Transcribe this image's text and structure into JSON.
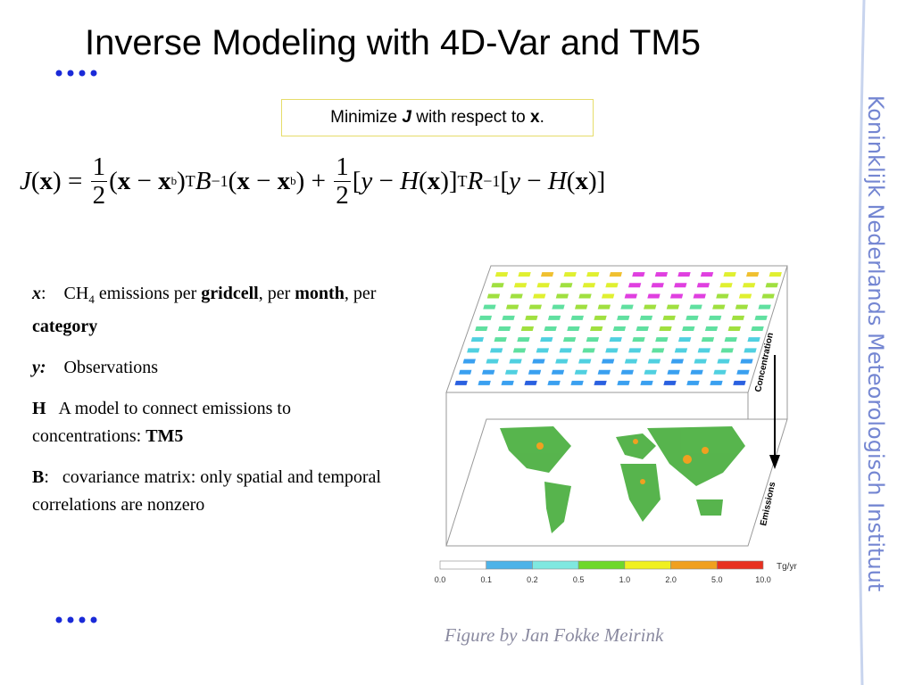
{
  "title": "Inverse Modeling with 4D-Var and TM5",
  "callout": [
    {
      "text": "Minimize "
    },
    {
      "text": "J",
      "style": "bold-italic"
    },
    {
      "text": " with respect to "
    },
    {
      "text": "x",
      "style": "bold"
    },
    {
      "text": "."
    }
  ],
  "formula": [
    {
      "text": "J",
      "style": "italic"
    },
    {
      "text": "("
    },
    {
      "text": "x",
      "style": "bold"
    },
    {
      "text": ") = "
    },
    {
      "num": "1",
      "den": "2"
    },
    {
      "text": "("
    },
    {
      "text": "x",
      "style": "bold"
    },
    {
      "text": " − "
    },
    {
      "text": "x",
      "style": "bold"
    },
    {
      "text": "b",
      "style": "sub"
    },
    {
      "text": ")"
    },
    {
      "text": "T",
      "style": "sup"
    },
    {
      "text": "B",
      "style": "italic"
    },
    {
      "text": "−1",
      "style": "sup"
    },
    {
      "text": "("
    },
    {
      "text": "x",
      "style": "bold"
    },
    {
      "text": " − "
    },
    {
      "text": "x",
      "style": "bold"
    },
    {
      "text": "b",
      "style": "sub"
    },
    {
      "text": ") + "
    },
    {
      "num": "1",
      "den": "2"
    },
    {
      "text": "["
    },
    {
      "text": "y",
      "style": "italic"
    },
    {
      "text": " − "
    },
    {
      "text": "H",
      "style": "italic"
    },
    {
      "text": "("
    },
    {
      "text": "x",
      "style": "bold"
    },
    {
      "text": ")]"
    },
    {
      "text": "T",
      "style": "sup"
    },
    {
      "text": "R",
      "style": "italic"
    },
    {
      "text": "−1",
      "style": "sup"
    },
    {
      "text": "["
    },
    {
      "text": "y",
      "style": "italic"
    },
    {
      "text": " − "
    },
    {
      "text": "H",
      "style": "italic"
    },
    {
      "text": "("
    },
    {
      "text": "x",
      "style": "bold"
    },
    {
      "text": ")]"
    }
  ],
  "definitions": [
    [
      {
        "text": "x",
        "style": "bold-italic"
      },
      {
        "text": ":    CH"
      },
      {
        "text": "4",
        "style": "sub"
      },
      {
        "text": " emissions per "
      },
      {
        "text": "gridcell",
        "style": "bold"
      },
      {
        "text": ", per "
      },
      {
        "text": "month",
        "style": "bold"
      },
      {
        "text": ", per "
      },
      {
        "text": "category",
        "style": "bold"
      }
    ],
    [
      {
        "text": "y:",
        "style": "bold-italic"
      },
      {
        "text": "    Observations"
      }
    ],
    [
      {
        "text": "H",
        "style": "bold"
      },
      {
        "text": "   A model to connect emissions to concentrations: "
      },
      {
        "text": "TM5",
        "style": "bold"
      }
    ],
    [
      {
        "text": "B",
        "style": "bold"
      },
      {
        "text": ":   covariance matrix: only spatial and temporal correlations are nonzero"
      }
    ]
  ],
  "figure": {
    "legend_labels": [
      "0.0",
      "0.1",
      "0.2",
      "0.5",
      "1.0",
      "2.0",
      "5.0",
      "10.0"
    ],
    "unit": "Tg/yr",
    "top_axis": "Concentration",
    "bottom_axis": "Emissions"
  },
  "caption": "Figure by Jan Fokke Meirink",
  "sidebar": "Koninklijk Nederlands Meteorologisch Instituut"
}
